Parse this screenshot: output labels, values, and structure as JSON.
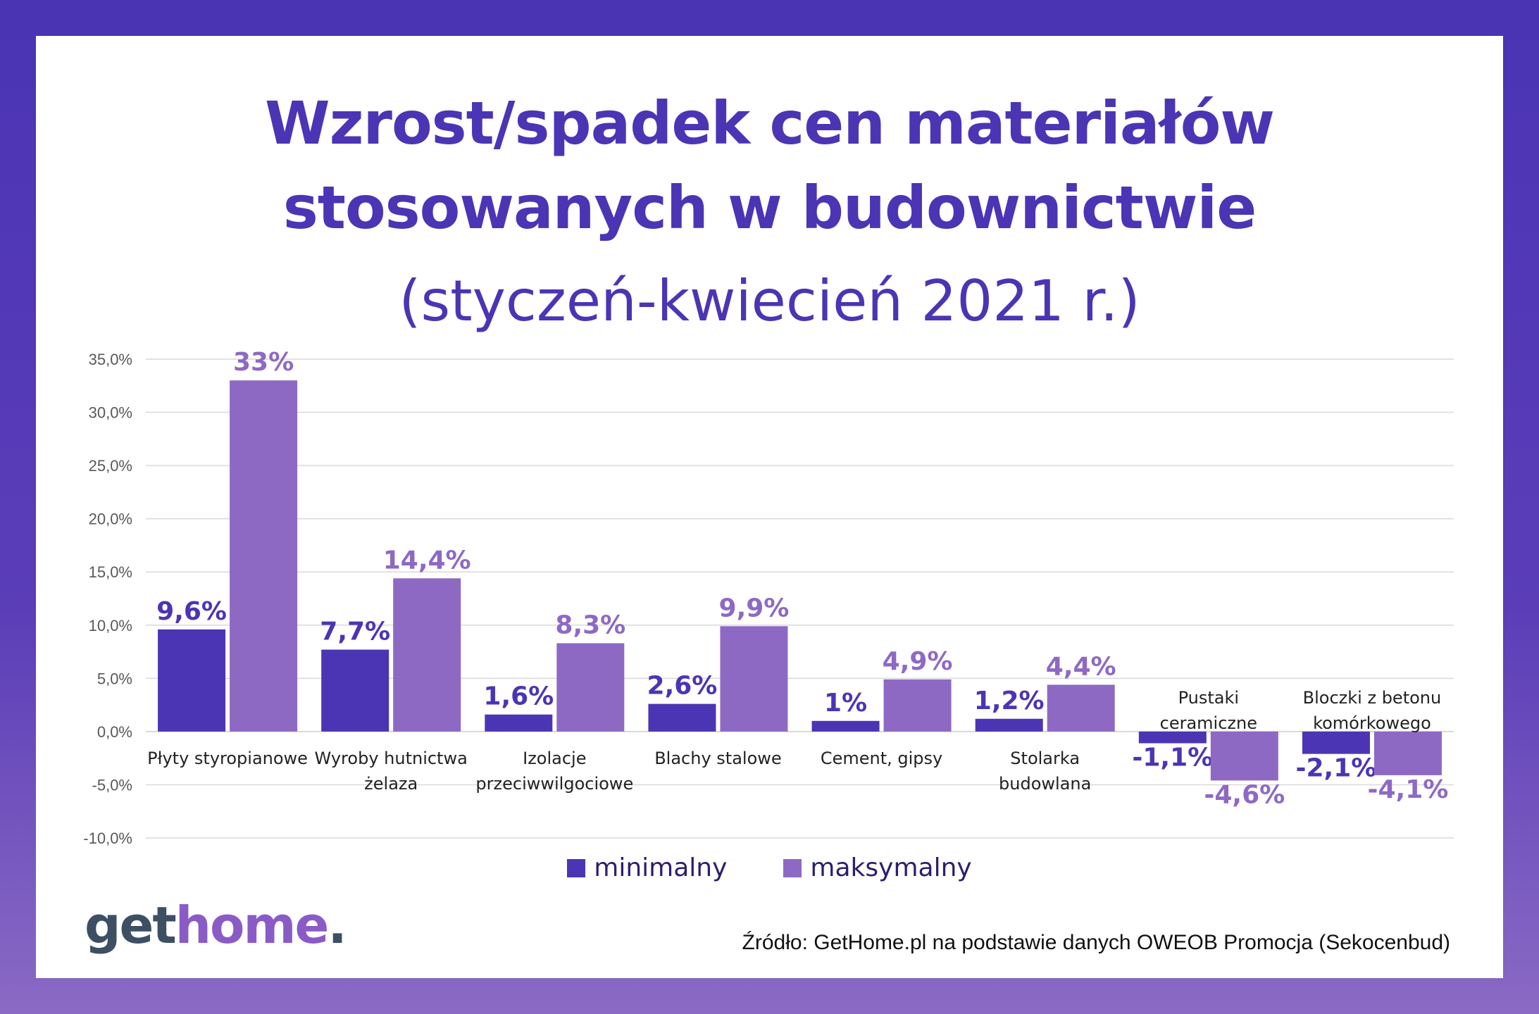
{
  "title_line1": "Wzrost/spadek cen materiałów",
  "title_line2": "stosowanych w budownictwie",
  "subtitle": "(styczeń-kwiecień 2021 r.)",
  "colors": {
    "min": "#4B35B4",
    "max": "#8E69C4",
    "grid": "#D9D9D9",
    "axis_text": "#595959",
    "cat_text": "#222222",
    "frame": "#4A34B4"
  },
  "legend": {
    "min_label": "minimalny",
    "max_label": "maksymalny"
  },
  "logo": {
    "part1": "get",
    "part2": "home",
    "part3": "."
  },
  "source": "Źródło: GetHome.pl na podstawie danych OWEOB Promocja (Sekocenbud)",
  "chart_data": {
    "type": "bar",
    "title": "Wzrost/spadek cen materiałów stosowanych w budownictwie (styczeń-kwiecień 2021 r.)",
    "categories": [
      [
        "Płyty styropianowe"
      ],
      [
        "Wyroby hutnictwa",
        "żelaza"
      ],
      [
        "Izolacje",
        "przeciwwilgociowe"
      ],
      [
        "Blachy stalowe"
      ],
      [
        "Cement, gipsy"
      ],
      [
        "Stolarka",
        "budowlana"
      ],
      [
        "Pustaki",
        "ceramiczne"
      ],
      [
        "Bloczki z betonu",
        "komórkowego"
      ]
    ],
    "series": [
      {
        "name": "minimalny",
        "values": [
          9.6,
          7.7,
          1.6,
          2.6,
          1.0,
          1.2,
          -1.1,
          -2.1
        ],
        "labels": [
          "9,6%",
          "7,7%",
          "1,6%",
          "2,6%",
          "1%",
          "1,2%",
          "-1,1%",
          "-2,1%"
        ]
      },
      {
        "name": "maksymalny",
        "values": [
          33.0,
          14.4,
          8.3,
          9.9,
          4.9,
          4.4,
          -4.6,
          -4.1
        ],
        "labels": [
          "33%",
          "14,4%",
          "8,3%",
          "9,9%",
          "4,9%",
          "4,4%",
          "-4,6%",
          "-4,1%"
        ]
      }
    ],
    "yticks": [
      -10,
      -5,
      0,
      5,
      10,
      15,
      20,
      25,
      30,
      35
    ],
    "ytick_labels": [
      "-10,0%",
      "-5,0%",
      "0,0%",
      "5,0%",
      "10,0%",
      "15,0%",
      "20,0%",
      "25,0%",
      "30,0%",
      "35,0%"
    ],
    "ylim": [
      -10,
      35
    ],
    "grid": true,
    "legend_position": "bottom"
  }
}
